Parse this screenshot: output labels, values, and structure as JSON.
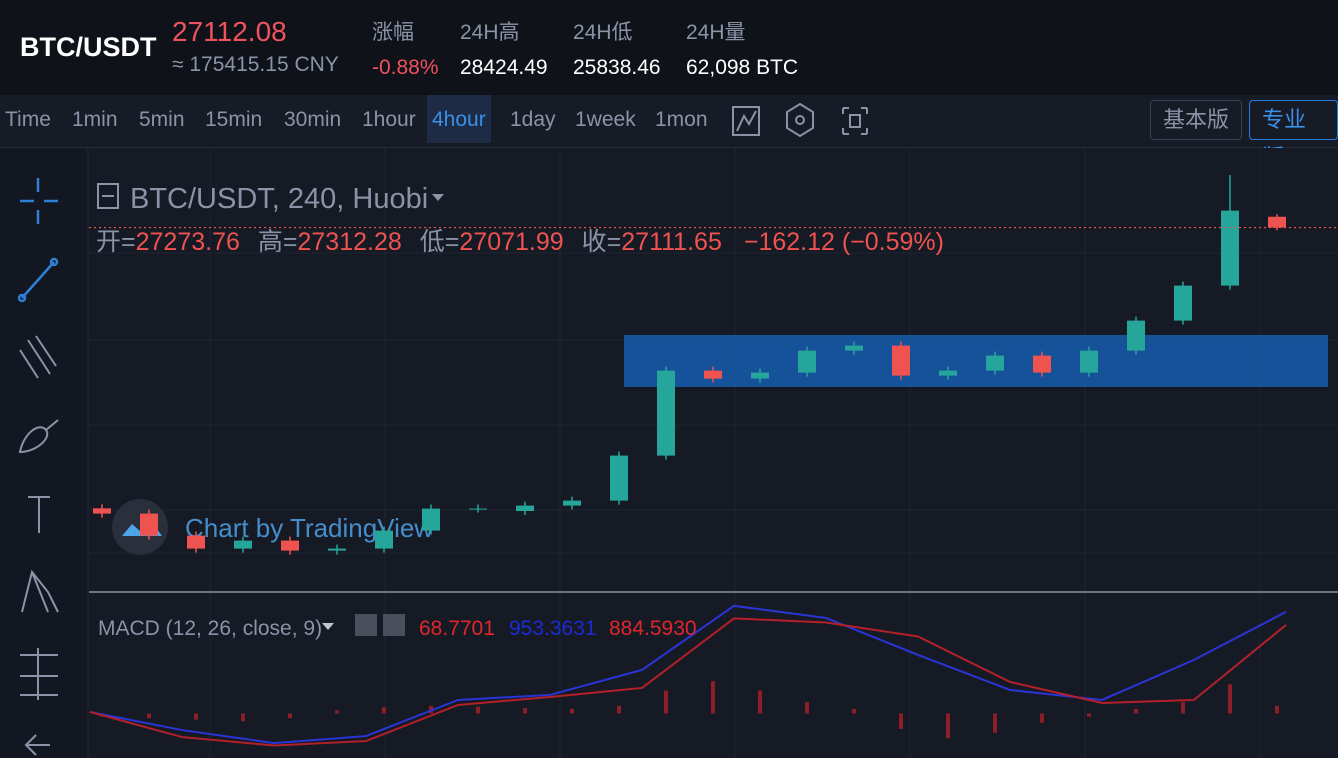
{
  "header": {
    "symbol": "BTC/USDT",
    "price": "27112.08",
    "cny": "≈ 175415.15 CNY",
    "stats": [
      {
        "label": "涨幅",
        "value": "-0.88%"
      },
      {
        "label": "24H高",
        "value": "28424.49"
      },
      {
        "label": "24H低",
        "value": "25838.46"
      },
      {
        "label": "24H量",
        "value": "62,098 BTC"
      }
    ]
  },
  "toolbar": {
    "intervals": [
      "Time",
      "1min",
      "5min",
      "15min",
      "30min",
      "1hour",
      "4hour",
      "1day",
      "1week",
      "1mon"
    ],
    "active": "4hour",
    "versions": [
      "基本版",
      "专业版"
    ]
  },
  "watermark": "Chart by TradingView",
  "chart_data": [
    {
      "type": "candlestick",
      "title": "BTC/USDT, 240, Huobi",
      "legend_labels": [
        "开=",
        "高=",
        "低=",
        "收="
      ],
      "change": "−162.12 (−0.59%)",
      "open": [
        22900,
        22821,
        22491,
        22296,
        22416,
        22266,
        22296,
        22566,
        22896,
        22860,
        22941,
        23016,
        23691,
        24966,
        24846,
        24936,
        25266,
        25341,
        24891,
        24966,
        25191,
        24936,
        25266,
        25716,
        26241,
        27273.76
      ],
      "high": [
        22960,
        22881,
        22551,
        22476,
        22476,
        22356,
        22626,
        22956,
        22956,
        23001,
        23076,
        23751,
        25026,
        25026,
        24996,
        25326,
        25401,
        25401,
        25026,
        25251,
        25251,
        25326,
        25776,
        26301,
        27900,
        27312.28
      ],
      "low": [
        22761,
        22431,
        22236,
        22236,
        22206,
        22206,
        22236,
        22506,
        22836,
        22800,
        22881,
        22956,
        23631,
        24786,
        24786,
        24876,
        25206,
        24831,
        24831,
        24906,
        24876,
        24876,
        25206,
        25656,
        26181,
        27071.99
      ],
      "close": [
        22821,
        22491,
        22296,
        22416,
        22266,
        22296,
        22566,
        22896,
        22896,
        22941,
        23016,
        23691,
        24966,
        24846,
        24936,
        25266,
        25341,
        24891,
        24966,
        25191,
        24936,
        25266,
        25716,
        26241,
        27366,
        27111.65
      ],
      "ylim": [
        21600,
        28200
      ],
      "up_color": "#26a69a",
      "down_color": "#ef5350"
    },
    {
      "type": "macd",
      "title": "MACD (12, 26, close, 9)",
      "legend_values": [
        "68.7701",
        "953.3631",
        "884.5930"
      ],
      "legend_colors": [
        "#e0262b",
        "#1c2bd6",
        "#e0262b"
      ],
      "histogram": [
        -40,
        -60,
        -80,
        -100,
        -60,
        40,
        80,
        100,
        90,
        70,
        60,
        100,
        300,
        420,
        300,
        150,
        60,
        -200,
        -320,
        -250,
        -120,
        -40,
        60,
        150,
        380,
        100
      ],
      "macd_line": [
        20,
        -215,
        -384,
        -293,
        176,
        241,
        566,
        1398,
        1241,
        761,
        306,
        176,
        696,
        1320
      ],
      "signal_line": [
        20,
        -306,
        -416,
        -358,
        111,
        215,
        332,
        1235,
        1182,
        1000,
        410,
        137,
        176,
        1150
      ],
      "ylim": [
        -500,
        1500
      ],
      "macd_color": "#2a35d8",
      "signal_color": "#b3202a",
      "histogram_color": "#8b1e26"
    }
  ]
}
